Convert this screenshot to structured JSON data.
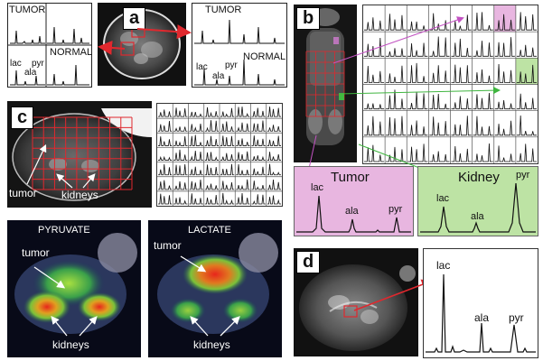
{
  "panel_a": {
    "label": "a",
    "spectra_left": {
      "tumor": "TUMOR",
      "normal": "NORMAL",
      "lac": "lac",
      "ala": "ala",
      "pyr": "pyr"
    },
    "spectra_right": {
      "tumor": "TUMOR",
      "normal": "NORMAL",
      "lac": "lac",
      "ala": "ala",
      "pyr": "pyr"
    },
    "arrow_color": "#e0282e"
  },
  "panel_b": {
    "label": "b",
    "grid": {
      "rows": 6,
      "cols": 8
    },
    "tumor": {
      "title": "Tumor",
      "color": "#e8b6e0",
      "lac": "lac",
      "ala": "ala",
      "pyr": "pyr"
    },
    "kidney": {
      "title": "Kidney",
      "color": "#bde3a4",
      "lac": "lac",
      "ala": "ala",
      "pyr": "pyr"
    }
  },
  "panel_c": {
    "label": "c",
    "top": {
      "tumor": "tumor",
      "kidneys": "kidneys"
    },
    "grid": {
      "rows": 7,
      "cols": 8
    },
    "maps": [
      {
        "title": "PYRUVATE",
        "tumor": "tumor",
        "kidneys": "kidneys"
      },
      {
        "title": "LACTATE",
        "tumor": "tumor",
        "kidneys": "kidneys"
      }
    ]
  },
  "panel_d": {
    "label": "d",
    "lac": "lac",
    "ala": "ala",
    "pyr": "pyr"
  }
}
